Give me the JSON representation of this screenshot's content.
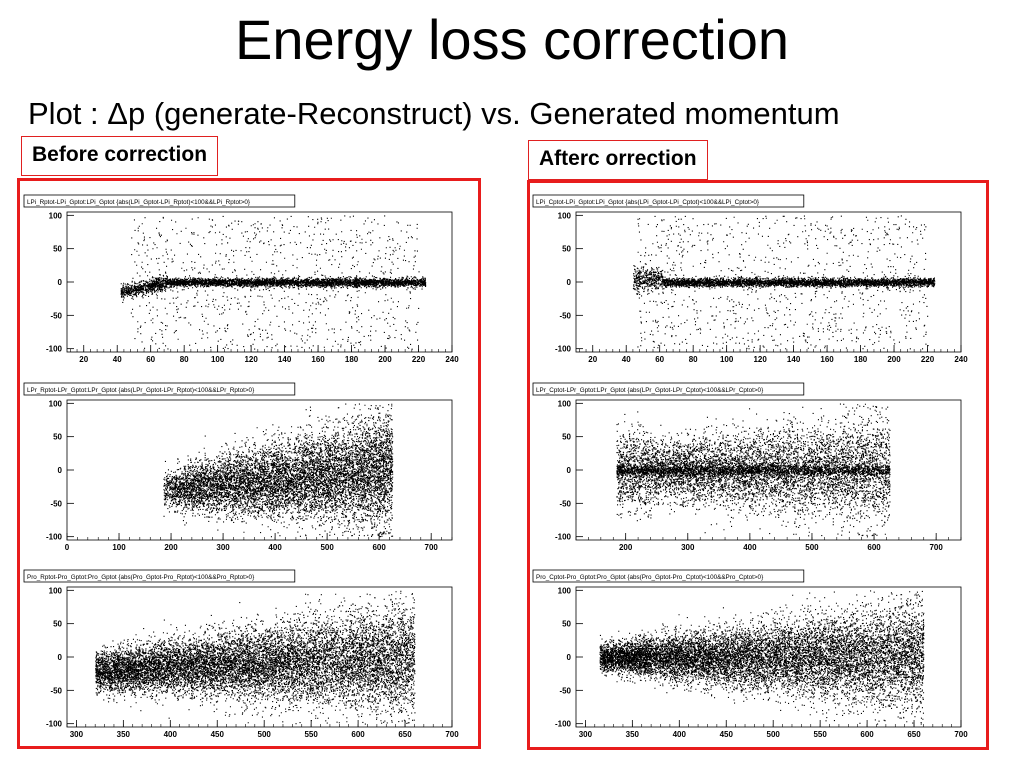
{
  "slide": {
    "title": "Energy loss correction",
    "subtitle": "Plot : Δp (generate-Reconstruct) vs. Generated momentum",
    "left_label": "Before correction",
    "right_label": "Afterc orrection"
  },
  "chart_data": [
    {
      "type": "scatter",
      "id": "before-lpi",
      "title": "LPi_Rptot-LPi_Gptot:LPi_Gptot {abs(LPi_Gptot-LPi_Rptot)<100&&LPi_Rptot>0}",
      "xlim": [
        10,
        240
      ],
      "ylim": [
        -105,
        105
      ],
      "xticks": [
        20,
        40,
        60,
        80,
        100,
        120,
        140,
        160,
        180,
        200,
        220,
        240
      ],
      "yticks": [
        100,
        50,
        0,
        -50,
        -100
      ]
    },
    {
      "type": "scatter",
      "id": "before-lpr",
      "title": "LPr_Rptot-LPr_Gptot:LPr_Gptot {abs(LPr_Gptot-LPr_Rptot)<100&&LPr_Rptot>0}",
      "xlim": [
        0,
        740
      ],
      "ylim": [
        -105,
        105
      ],
      "xticks": [
        0,
        100,
        200,
        300,
        400,
        500,
        600,
        700
      ],
      "yticks": [
        100,
        50,
        0,
        -50,
        -100
      ]
    },
    {
      "type": "scatter",
      "id": "before-pro",
      "title": "Pro_Rptot-Pro_Gptot:Pro_Gptot {abs(Pro_Gptot-Pro_Rptot)<100&&Pro_Rptot>0}",
      "xlim": [
        290,
        700
      ],
      "ylim": [
        -105,
        105
      ],
      "xticks": [
        300,
        350,
        400,
        450,
        500,
        550,
        600,
        650,
        700
      ],
      "yticks": [
        100,
        50,
        0,
        -50,
        -100
      ]
    },
    {
      "type": "scatter",
      "id": "after-lpi",
      "title": "LPi_Cptot-LPi_Gptot:LPi_Gptot {abs(LPi_Gptot-LPi_Cptot)<100&&LPi_Cptot>0}",
      "xlim": [
        10,
        240
      ],
      "ylim": [
        -105,
        105
      ],
      "xticks": [
        20,
        40,
        60,
        80,
        100,
        120,
        140,
        160,
        180,
        200,
        220,
        240
      ],
      "yticks": [
        100,
        50,
        0,
        -50,
        -100
      ]
    },
    {
      "type": "scatter",
      "id": "after-lpr",
      "title": "LPr_Cptot-LPr_Gptot:LPr_Gptot {abs(LPr_Gptot-LPr_Cptot)<100&&LPr_Cptot>0}",
      "xlim": [
        120,
        740
      ],
      "ylim": [
        -105,
        105
      ],
      "xticks": [
        200,
        300,
        400,
        500,
        600,
        700
      ],
      "yticks": [
        100,
        50,
        0,
        -50,
        -100
      ]
    },
    {
      "type": "scatter",
      "id": "after-pro",
      "title": "Pro_Cptot-Pro_Gptot:Pro_Gptot {abs(Pro_Gptot-Pro_Cptot)<100&&Pro_Cptot>0}",
      "xlim": [
        290,
        700
      ],
      "ylim": [
        -105,
        105
      ],
      "xticks": [
        300,
        350,
        400,
        450,
        500,
        550,
        600,
        650,
        700
      ],
      "yticks": [
        100,
        50,
        0,
        -50,
        -100
      ]
    }
  ]
}
